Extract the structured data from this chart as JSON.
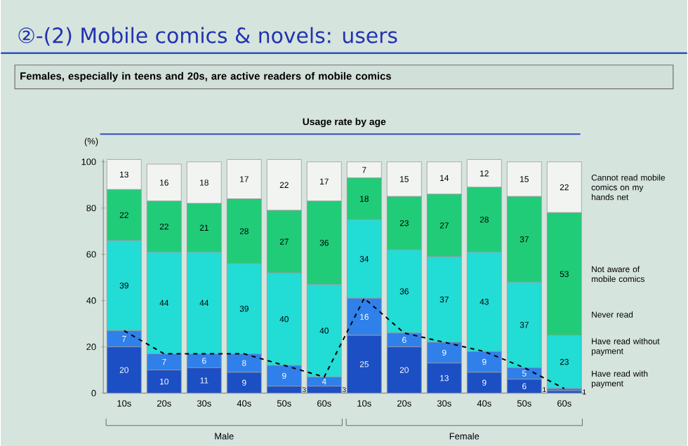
{
  "chart_data": {
    "type": "bar",
    "title": "②-(2) Mobile comics & novels:  users",
    "subtitle": "Females, especially in teens and 20s, are active readers of mobile comics",
    "ylabel": "(%)",
    "annotations": [
      "Usage rate by age",
      "Male",
      "Female"
    ],
    "categories": [
      "10s",
      "20s",
      "30s",
      "40s",
      "50s",
      "60s",
      "10s",
      "20s",
      "30s",
      "40s",
      "50s",
      "60s"
    ],
    "stacked": true,
    "data_labels": true,
    "ylim": [
      0,
      101
    ],
    "yticks": [
      0,
      20,
      40,
      60,
      80,
      100
    ],
    "series": [
      {
        "name": "Have read with payment",
        "color": "#1c4fc4",
        "values": [
          20,
          10,
          11,
          9,
          3,
          3,
          25,
          20,
          13,
          9,
          6,
          1
        ]
      },
      {
        "name": "Have read without payment",
        "color": "#2f80ea",
        "values": [
          7,
          7,
          6,
          8,
          9,
          4,
          16,
          6,
          9,
          9,
          5,
          1
        ]
      },
      {
        "name": "Never read",
        "color": "#22dcd6",
        "values": [
          39,
          44,
          44,
          39,
          40,
          40,
          34,
          36,
          37,
          43,
          37,
          23
        ]
      },
      {
        "name": "Not aware of mobile comics",
        "color": "#20cc78",
        "values": [
          22,
          22,
          21,
          28,
          27,
          36,
          18,
          23,
          27,
          28,
          37,
          53
        ]
      },
      {
        "name": "Cannot read mobile comics on my hands net",
        "color": "#f2f4f2",
        "values": [
          13,
          16,
          18,
          17,
          22,
          17,
          7,
          15,
          14,
          12,
          15,
          22
        ]
      },
      {
        "type": "line",
        "color": "#000000",
        "line_style": "dashed",
        "values": [
          27,
          17,
          17,
          17,
          12,
          7,
          41,
          26,
          22,
          18,
          11,
          2
        ],
        "value_labels": [
          null,
          null,
          null,
          null,
          null,
          null,
          null,
          null,
          null,
          null,
          null,
          null
        ]
      }
    ]
  }
}
